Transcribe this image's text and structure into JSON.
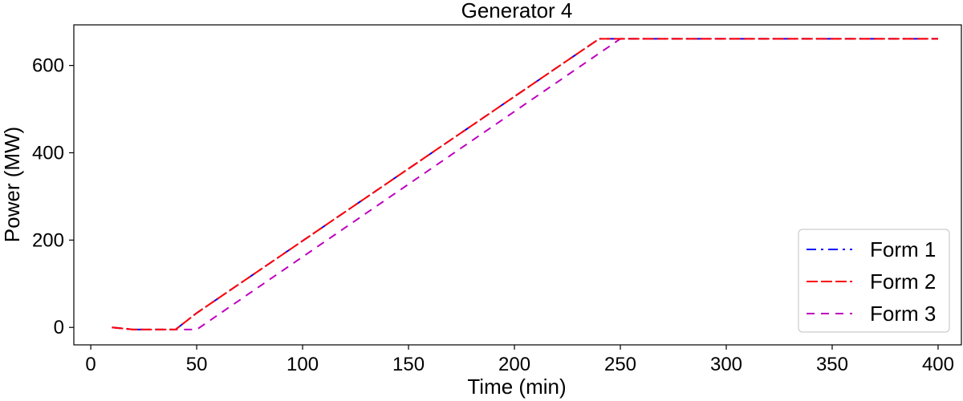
{
  "chart_data": {
    "type": "line",
    "title": "Generator 4",
    "xlabel": "Time (min)",
    "ylabel": "Power (MW)",
    "xlim": [
      -8,
      411
    ],
    "ylim": [
      -40,
      693
    ],
    "xticks": [
      0,
      50,
      100,
      150,
      200,
      250,
      300,
      350,
      400
    ],
    "yticks": [
      0,
      200,
      400,
      600
    ],
    "grid": false,
    "legend_position": "bottom-right",
    "series": [
      {
        "name": "Form 1",
        "color": "#0000ff",
        "style": "dashdot",
        "points": [
          [
            10,
            0
          ],
          [
            20,
            -5
          ],
          [
            40,
            -5
          ],
          [
            50,
            33
          ],
          [
            240,
            661
          ],
          [
            400,
            661
          ]
        ]
      },
      {
        "name": "Form 2",
        "color": "#ff0000",
        "style": "longdash",
        "points": [
          [
            10,
            0
          ],
          [
            20,
            -5
          ],
          [
            40,
            -5
          ],
          [
            50,
            33
          ],
          [
            240,
            661
          ],
          [
            400,
            661
          ]
        ]
      },
      {
        "name": "Form 3",
        "color": "#bf00bf",
        "style": "dashed",
        "points": [
          [
            10,
            0
          ],
          [
            20,
            -5
          ],
          [
            50,
            -5
          ],
          [
            250,
            661
          ],
          [
            400,
            661
          ]
        ]
      }
    ]
  }
}
